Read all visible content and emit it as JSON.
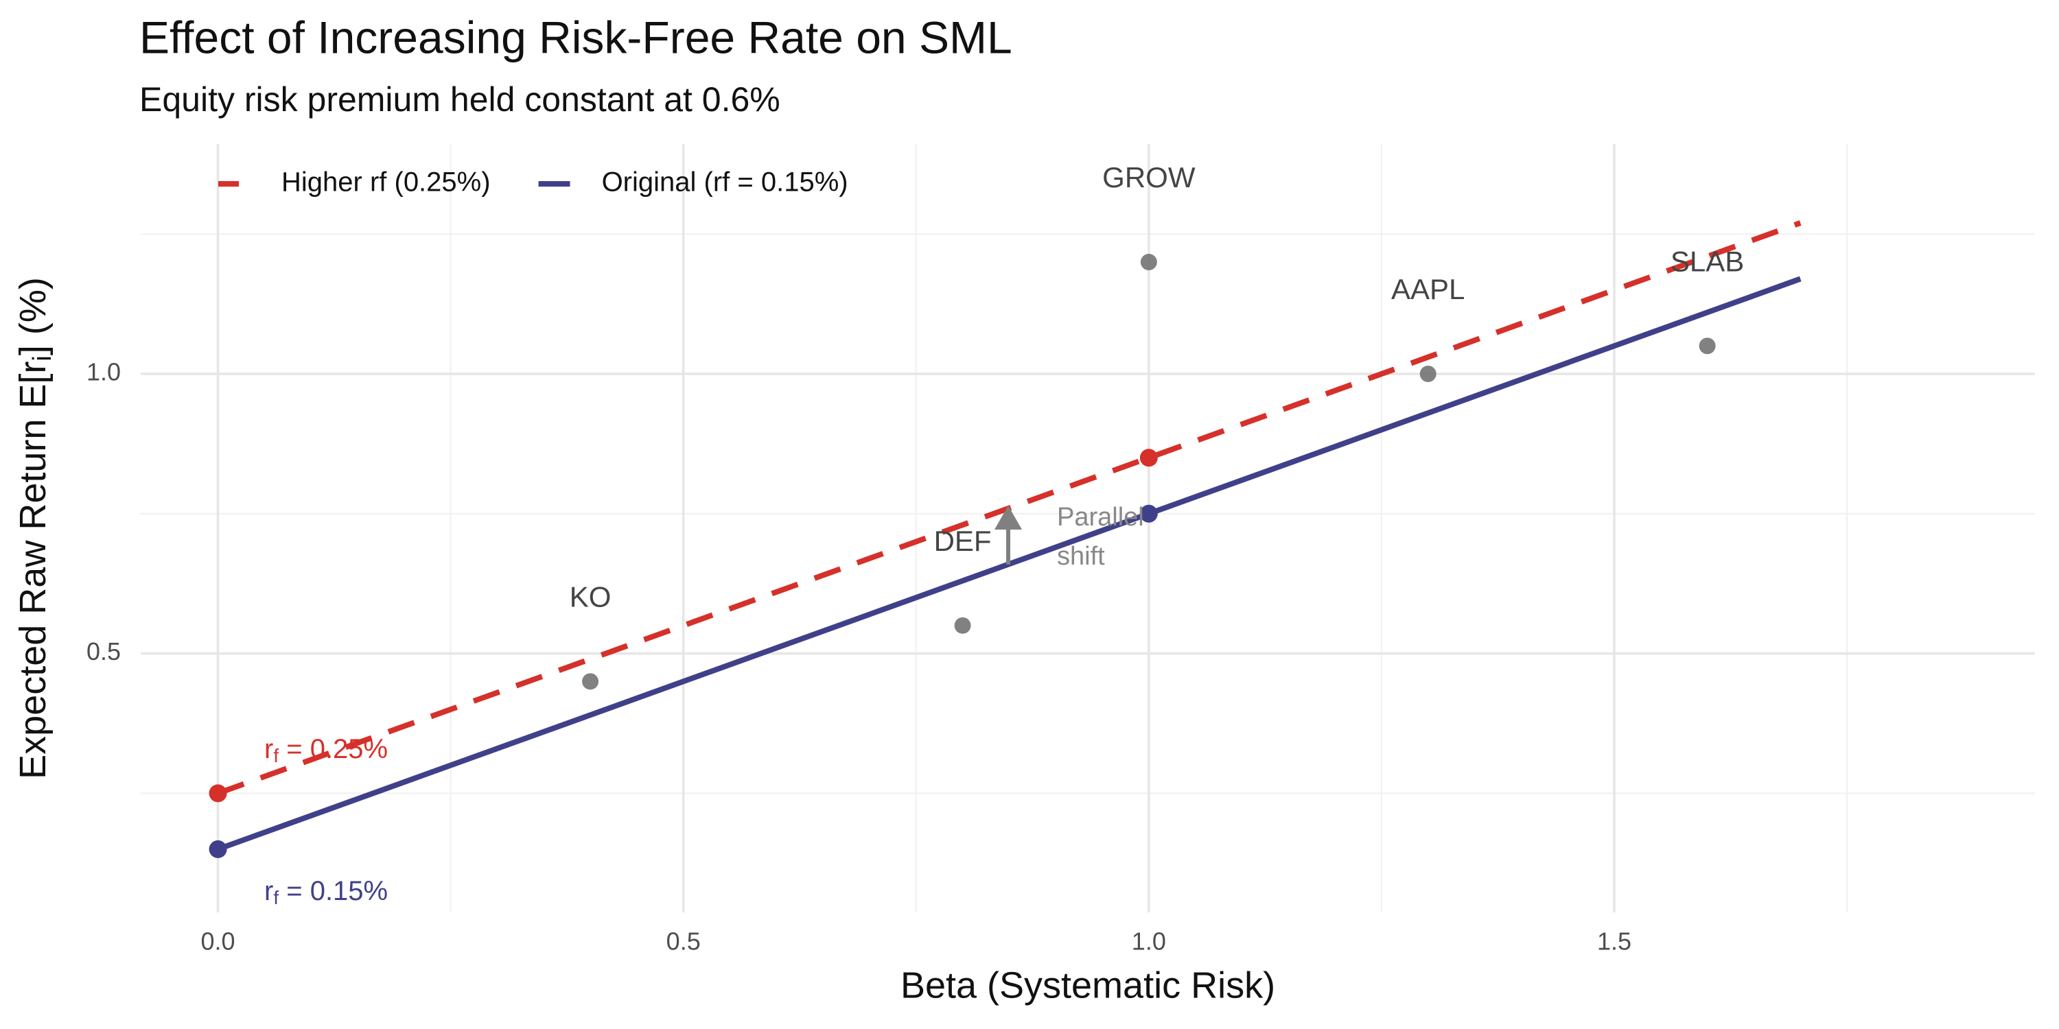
{
  "chart_data": {
    "type": "line",
    "title": "Effect of Increasing Risk-Free Rate on SML",
    "subtitle": "Equity risk premium held constant at 0.6%",
    "x_label": "Beta (Systematic Risk)",
    "y_label": {
      "main": "Expected Raw Return  E[r",
      "sub": "i",
      "end": "]  (%)"
    },
    "xlim": [
      -0.083,
      1.952
    ],
    "ylim": [
      0.037,
      1.411
    ],
    "xticks": [
      {
        "value": 0,
        "label": "0.0"
      },
      {
        "value": 0.5,
        "label": "0.5"
      },
      {
        "value": 1,
        "label": "1.0"
      },
      {
        "value": 1.5,
        "label": "1.5"
      }
    ],
    "yticks": [
      {
        "value": 0.5,
        "label": "0.5"
      },
      {
        "value": 1,
        "label": "1.0"
      }
    ],
    "x_minor_ticks": [
      0.25,
      0.75,
      1.25,
      1.75
    ],
    "y_minor_ticks": [
      0.25,
      0.75,
      1.25
    ],
    "grid": true,
    "legend": "top-left",
    "series": [
      {
        "name": "Higher rf (0.25%)",
        "color": "#d6302a",
        "dashed": true,
        "x": [
          0,
          1.7
        ],
        "values": [
          0.25,
          1.27
        ],
        "points": {
          "x": [
            0,
            1
          ],
          "values": [
            0.25,
            0.85
          ]
        }
      },
      {
        "name": "Original (rf = 0.15%)",
        "color": "#40408a",
        "dashed": false,
        "x": [
          0,
          1.7
        ],
        "values": [
          0.15,
          1.17
        ],
        "points": {
          "x": [
            0,
            1
          ],
          "values": [
            0.15,
            0.75
          ]
        }
      }
    ],
    "stocks": {
      "color": "#6b6b6b",
      "labels": [
        "KO",
        "DEF",
        "GROW",
        "AAPL",
        "SLAB"
      ],
      "x": [
        0.4,
        0.8,
        1.0,
        1.3,
        1.6
      ],
      "values": [
        0.45,
        0.55,
        1.2,
        1.0,
        1.05
      ]
    },
    "annotations": [
      {
        "main": "r",
        "sub": "f",
        "rest": " = 0.25%",
        "color": "#d6302a"
      },
      {
        "main": "r",
        "sub": "f",
        "rest": " = 0.15%",
        "color": "#40408a"
      }
    ],
    "shift_label": [
      "Parallel",
      "shift"
    ]
  }
}
